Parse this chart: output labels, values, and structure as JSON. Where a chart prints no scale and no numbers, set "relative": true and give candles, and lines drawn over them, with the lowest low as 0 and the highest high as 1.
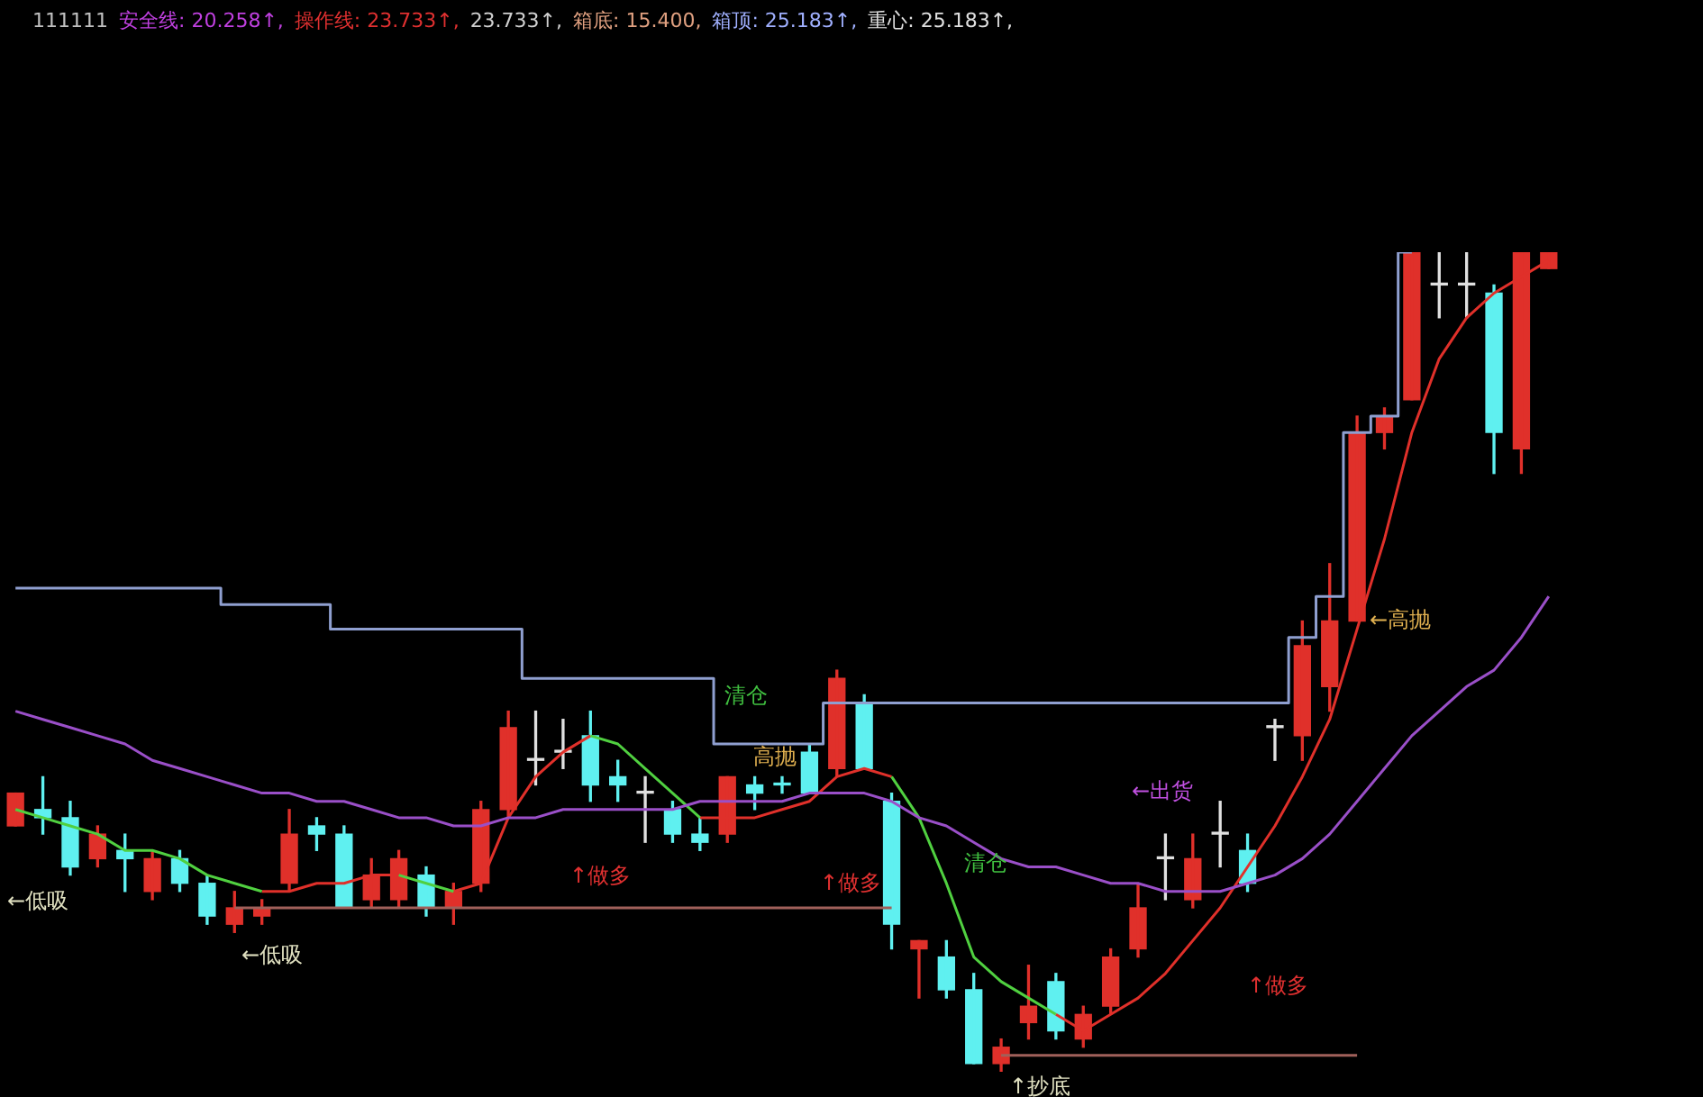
{
  "chart_data": {
    "type": "candlestick",
    "relative": true,
    "categories": [
      null,
      null,
      null,
      null,
      null,
      null,
      null,
      null,
      null,
      null,
      null,
      null,
      null,
      null,
      null,
      null,
      null,
      null,
      null,
      null,
      null,
      null,
      null,
      null,
      null,
      null,
      null,
      null,
      null,
      null,
      null,
      null,
      null,
      null,
      null,
      null,
      null,
      null,
      null,
      null,
      null,
      null,
      null,
      null,
      null,
      null,
      null,
      null,
      null,
      null,
      null,
      null,
      null,
      null,
      null,
      null,
      null
    ],
    "ohlc": [
      [
        0.3,
        0.34,
        0.3,
        0.34
      ],
      [
        0.32,
        0.36,
        0.29,
        0.31
      ],
      [
        0.31,
        0.33,
        0.24,
        0.25
      ],
      [
        0.26,
        0.3,
        0.25,
        0.29
      ],
      [
        0.27,
        0.29,
        0.22,
        0.26
      ],
      [
        0.22,
        0.27,
        0.21,
        0.26
      ],
      [
        0.26,
        0.27,
        0.22,
        0.23
      ],
      [
        0.23,
        0.24,
        0.18,
        0.19
      ],
      [
        0.18,
        0.22,
        0.17,
        0.2
      ],
      [
        0.19,
        0.21,
        0.18,
        0.2
      ],
      [
        0.23,
        0.32,
        0.22,
        0.29
      ],
      [
        0.3,
        0.31,
        0.27,
        0.29
      ],
      [
        0.29,
        0.3,
        0.2,
        0.2
      ],
      [
        0.21,
        0.26,
        0.2,
        0.24
      ],
      [
        0.21,
        0.27,
        0.2,
        0.26
      ],
      [
        0.24,
        0.25,
        0.19,
        0.2
      ],
      [
        0.2,
        0.23,
        0.18,
        0.22
      ],
      [
        0.23,
        0.33,
        0.22,
        0.32
      ],
      [
        0.32,
        0.44,
        0.31,
        0.42
      ],
      [
        0.38,
        0.44,
        0.35,
        0.38
      ],
      [
        0.39,
        0.43,
        0.37,
        0.39
      ],
      [
        0.41,
        0.44,
        0.33,
        0.35
      ],
      [
        0.36,
        0.38,
        0.33,
        0.35
      ],
      [
        0.34,
        0.36,
        0.28,
        0.34
      ],
      [
        0.32,
        0.33,
        0.28,
        0.29
      ],
      [
        0.29,
        0.31,
        0.27,
        0.28
      ],
      [
        0.29,
        0.36,
        0.28,
        0.36
      ],
      [
        0.35,
        0.36,
        0.32,
        0.34
      ],
      [
        0.35,
        0.36,
        0.34,
        0.35
      ],
      [
        0.39,
        0.4,
        0.34,
        0.34
      ],
      [
        0.37,
        0.49,
        0.36,
        0.48
      ],
      [
        0.45,
        0.46,
        0.37,
        0.37
      ],
      [
        0.33,
        0.34,
        0.15,
        0.18
      ],
      [
        0.15,
        0.16,
        0.09,
        0.16
      ],
      [
        0.14,
        0.16,
        0.09,
        0.1
      ],
      [
        0.1,
        0.12,
        0.01,
        0.01
      ],
      [
        0.01,
        0.04,
        0,
        0.03
      ],
      [
        0.06,
        0.13,
        0.04,
        0.08
      ],
      [
        0.11,
        0.12,
        0.04,
        0.05
      ],
      [
        0.04,
        0.08,
        0.03,
        0.07
      ],
      [
        0.08,
        0.15,
        0.07,
        0.14
      ],
      [
        0.15,
        0.23,
        0.14,
        0.2
      ],
      [
        0.26,
        0.29,
        0.21,
        0.26
      ],
      [
        0.21,
        0.29,
        0.2,
        0.26
      ],
      [
        0.29,
        0.33,
        0.25,
        0.29
      ],
      [
        0.27,
        0.29,
        0.22,
        0.23
      ],
      [
        0.42,
        0.43,
        0.38,
        0.42
      ],
      [
        0.41,
        0.55,
        0.38,
        0.52
      ],
      [
        0.47,
        0.62,
        0.44,
        0.55
      ],
      [
        0.55,
        0.8,
        0.55,
        0.78
      ],
      [
        0.78,
        0.81,
        0.76,
        0.8
      ],
      [
        0.82,
        1,
        0.82,
        1
      ],
      [
        0.96,
        1,
        0.92,
        0.96
      ],
      [
        0.96,
        1,
        0.92,
        0.96
      ],
      [
        0.95,
        0.96,
        0.73,
        0.78
      ],
      [
        0.76,
        1,
        0.73,
        1
      ],
      [
        0.98,
        1,
        0.98,
        1
      ]
    ],
    "colors": [
      "#e0302a",
      "#5ff0f0",
      "#5ff0f0",
      "#e0302a",
      "#5ff0f0",
      "#e0302a",
      "#5ff0f0",
      "#5ff0f0",
      "#e0302a",
      "#e0302a",
      "#e0302a",
      "#5ff0f0",
      "#5ff0f0",
      "#e0302a",
      "#e0302a",
      "#5ff0f0",
      "#e0302a",
      "#e0302a",
      "#e0302a",
      "#e0e0e0",
      "#e0e0e0",
      "#5ff0f0",
      "#5ff0f0",
      "#e0e0e0",
      "#5ff0f0",
      "#5ff0f0",
      "#e0302a",
      "#5ff0f0",
      "#5ff0f0",
      "#5ff0f0",
      "#e0302a",
      "#5ff0f0",
      "#5ff0f0",
      "#e0302a",
      "#5ff0f0",
      "#5ff0f0",
      "#e0302a",
      "#e0302a",
      "#5ff0f0",
      "#e0302a",
      "#e0302a",
      "#e0302a",
      "#e0e0e0",
      "#e0302a",
      "#e0e0e0",
      "#5ff0f0",
      "#e0e0e0",
      "#e0302a",
      "#e0302a",
      "#e0302a",
      "#e0302a",
      "#e0302a",
      "#e0e0e0",
      "#e0e0e0",
      "#5ff0f0",
      "#e0302a",
      "#e0302a"
    ],
    "series": [
      {
        "type": "line",
        "color": "#9a4fc8",
        "values": [
          0.44,
          0.43,
          0.42,
          0.41,
          0.4,
          0.38,
          0.37,
          0.36,
          0.35,
          0.34,
          0.34,
          0.33,
          0.33,
          0.32,
          0.31,
          0.31,
          0.3,
          0.3,
          0.31,
          0.31,
          0.32,
          0.32,
          0.32,
          0.32,
          0.32,
          0.33,
          0.33,
          0.33,
          0.33,
          0.34,
          0.34,
          0.34,
          0.33,
          0.31,
          0.3,
          0.28,
          0.26,
          0.25,
          0.25,
          0.24,
          0.23,
          0.23,
          0.22,
          0.22,
          0.22,
          0.23,
          0.24,
          0.26,
          0.29,
          0.33,
          0.37,
          0.41,
          0.44,
          0.47,
          0.49,
          0.53,
          0.58
        ]
      },
      {
        "type": "step",
        "color": "#8f9fd0",
        "values": [
          0.59,
          0.59,
          0.59,
          0.59,
          0.59,
          0.59,
          0.59,
          0.59,
          0.57,
          0.57,
          0.57,
          0.57,
          0.54,
          0.54,
          0.54,
          0.54,
          0.54,
          0.54,
          0.54,
          0.48,
          0.48,
          0.48,
          0.48,
          0.48,
          0.48,
          0.48,
          0.4,
          0.4,
          0.4,
          0.4,
          0.45,
          0.45,
          0.45,
          0.45,
          0.45,
          0.45,
          0.45,
          0.45,
          0.45,
          0.45,
          0.45,
          0.45,
          0.45,
          0.45,
          0.45,
          0.45,
          0.45,
          0.53,
          0.58,
          0.78,
          0.8,
          1,
          null,
          null,
          null,
          null,
          null
        ]
      },
      {
        "type": "step",
        "color": "#a0605a",
        "values": [
          null,
          null,
          null,
          null,
          null,
          null,
          null,
          null,
          0.2,
          0.2,
          0.2,
          0.2,
          0.2,
          0.2,
          0.2,
          0.2,
          0.2,
          0.2,
          0.2,
          0.2,
          0.2,
          0.2,
          0.2,
          0.2,
          0.2,
          0.2,
          0.2,
          0.2,
          0.2,
          0.2,
          0.2,
          0.2,
          0.2,
          null,
          null,
          null,
          0.02,
          0.02,
          0.02,
          0.02,
          0.02,
          0.02,
          0.02,
          0.02,
          0.02,
          0.02,
          0.02,
          0.02,
          0.02,
          0.02,
          null,
          null,
          null,
          null,
          null,
          null,
          null
        ]
      },
      {
        "type": "line",
        "color": "#50d040",
        "values": [
          0.32,
          0.31,
          0.3,
          0.29,
          0.27,
          0.27,
          0.26,
          0.24,
          0.23,
          0.22,
          null,
          null,
          null,
          null,
          0.24,
          0.23,
          0.22,
          null,
          null,
          null,
          null,
          0.41,
          0.4,
          0.37,
          0.34,
          0.31,
          null,
          null,
          null,
          null,
          null,
          null,
          0.36,
          0.31,
          0.23,
          0.14,
          0.11,
          0.09,
          0.07,
          null,
          null,
          null,
          null,
          null,
          null,
          null,
          null,
          null,
          null,
          null,
          null,
          null,
          null,
          null,
          null,
          null,
          null
        ]
      },
      {
        "type": "line",
        "color": "#e0302a",
        "values": [
          null,
          null,
          null,
          null,
          null,
          null,
          null,
          null,
          null,
          0.22,
          0.22,
          0.23,
          0.23,
          0.24,
          0.24,
          null,
          0.22,
          0.23,
          0.31,
          0.36,
          0.39,
          0.41,
          null,
          null,
          null,
          0.31,
          0.31,
          0.31,
          0.32,
          0.33,
          0.36,
          0.37,
          0.36,
          null,
          null,
          null,
          null,
          null,
          0.07,
          0.05,
          0.07,
          0.09,
          0.12,
          0.16,
          0.2,
          0.25,
          0.3,
          0.36,
          0.43,
          0.54,
          0.65,
          0.78,
          0.87,
          0.92,
          0.95,
          0.97,
          0.99
        ]
      }
    ],
    "annotations": [
      "111111",
      "安全线: 20.258↑,",
      "操作线: 23.733↑,",
      "23.733↑,",
      "箱底: 15.400,",
      "箱顶: 25.183↑,",
      "重心: 25.183↑,",
      "←低吸",
      "←低吸",
      "↑做多",
      "清仓",
      "高抛",
      "↑做多",
      "清仓",
      "↑抄底",
      "←出货",
      "←高抛",
      "↑做多"
    ]
  }
}
